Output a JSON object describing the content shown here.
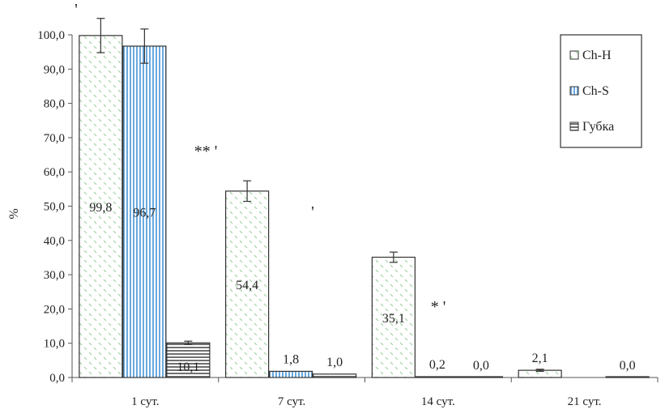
{
  "chart_data": {
    "type": "bar",
    "title": "",
    "xlabel": "",
    "ylabel": "%",
    "ylim": [
      0,
      100
    ],
    "ytick_labels": [
      "0,0",
      "10,0",
      "20,0",
      "30,0",
      "40,0",
      "50,0",
      "60,0",
      "70,0",
      "80,0",
      "90,0",
      "100,0"
    ],
    "categories": [
      "1 сут.",
      "7 сут.",
      "14 сут.",
      "21 сут."
    ],
    "series": [
      {
        "name": "Ch-H",
        "values": [
          99.8,
          54.4,
          35.1,
          2.1
        ],
        "labels": [
          "99,8",
          "54,4",
          "35,1",
          "2,1"
        ],
        "errors": [
          5.0,
          3.0,
          1.5,
          0.3
        ]
      },
      {
        "name": "Ch-S",
        "values": [
          96.7,
          1.8,
          0.2,
          null
        ],
        "labels": [
          "96,7",
          "1,8",
          "0,2",
          ""
        ],
        "errors": [
          5.0,
          null,
          null,
          null
        ]
      },
      {
        "name": "Губка",
        "values": [
          10.1,
          1.0,
          0.0,
          0.0
        ],
        "labels": [
          "10,1",
          "1,0",
          "0,0",
          "0,0"
        ],
        "errors": [
          0.5,
          null,
          null,
          null
        ]
      }
    ],
    "annotations": [
      "'",
      "** '",
      "'",
      "* '"
    ],
    "legend_position": "top-right",
    "grid": false
  }
}
